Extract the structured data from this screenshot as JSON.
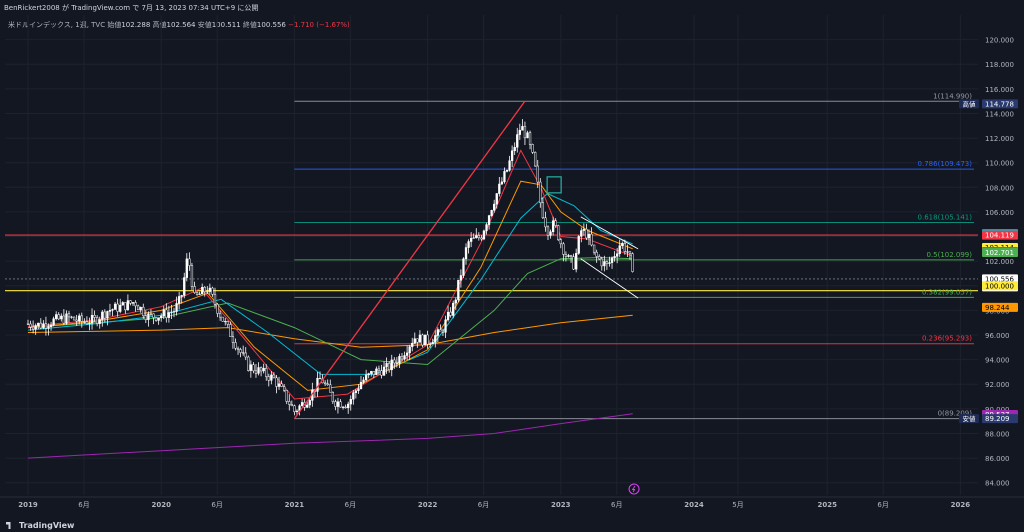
{
  "header": {
    "publish_line": "BenRickert2008 が TradingView.com で 7月 13, 2023 07:34 UTC+9 に公開",
    "symbol": "米ドルインデックス, 1週, TVC",
    "open_label": "始値",
    "open": "102.288",
    "high_label": "高値",
    "high": "102.564",
    "low_label": "安値",
    "low": "100.511",
    "close_label": "終値",
    "close": "100.556",
    "change": "−1.710 (−1.67%)"
  },
  "brand": {
    "name": "TradingView",
    "icon": "tradingview-logo-icon"
  },
  "colors": {
    "background": "#131722",
    "up": "#ffffff",
    "down": "#ffffff",
    "red_line": "#f23645",
    "yellow_line": "#ffeb3b",
    "fib_green": "#4caf50",
    "fib_blue": "#2962ff",
    "fib_teal": "#089981",
    "purple_ma": "#9c27b0",
    "orange_ma": "#ff9800"
  },
  "chart_data": {
    "type": "candlestick",
    "y_axis": {
      "min": 83,
      "max": 122,
      "position": "right",
      "ticks": [
        "84.000",
        "86.000",
        "88.000",
        "90.000",
        "92.000",
        "94.000",
        "96.000",
        "98.000",
        "100.000",
        "102.000",
        "104.000",
        "106.000",
        "108.000",
        "110.000",
        "112.000",
        "114.000",
        "116.000",
        "118.000",
        "120.000"
      ]
    },
    "x_axis": {
      "ticks": [
        {
          "label": "2019",
          "t": 0
        },
        {
          "label": "6月",
          "t": 0.42
        },
        {
          "label": "2020",
          "t": 1.0
        },
        {
          "label": "6月",
          "t": 1.42
        },
        {
          "label": "2021",
          "t": 2.0
        },
        {
          "label": "6月",
          "t": 2.42
        },
        {
          "label": "2022",
          "t": 3.0
        },
        {
          "label": "6月",
          "t": 3.42
        },
        {
          "label": "2023",
          "t": 4.0
        },
        {
          "label": "6月",
          "t": 4.42
        },
        {
          "label": "2024",
          "t": 5.0
        },
        {
          "label": "5月",
          "t": 5.33
        },
        {
          "label": "2025",
          "t": 6.0
        },
        {
          "label": "6月",
          "t": 6.42
        },
        {
          "label": "2026",
          "t": 7.0
        }
      ]
    },
    "price_path": [
      [
        0,
        96.9
      ],
      [
        0.1,
        96.8
      ],
      [
        0.2,
        97.2
      ],
      [
        0.3,
        97.4
      ],
      [
        0.4,
        97.1
      ],
      [
        0.5,
        97.2
      ],
      [
        0.6,
        98.0
      ],
      [
        0.7,
        98.3
      ],
      [
        0.8,
        98.7
      ],
      [
        0.9,
        97.5
      ],
      [
        1.0,
        97.6
      ],
      [
        1.1,
        98.0
      ],
      [
        1.15,
        99.0
      ],
      [
        1.2,
        102.5
      ],
      [
        1.25,
        99.0
      ],
      [
        1.35,
        99.8
      ],
      [
        1.45,
        97.5
      ],
      [
        1.55,
        95.5
      ],
      [
        1.65,
        93.5
      ],
      [
        1.75,
        93.0
      ],
      [
        1.85,
        92.4
      ],
      [
        1.95,
        90.7
      ],
      [
        2.0,
        89.8
      ],
      [
        2.1,
        90.8
      ],
      [
        2.2,
        92.5
      ],
      [
        2.3,
        90.6
      ],
      [
        2.4,
        90.4
      ],
      [
        2.5,
        92.2
      ],
      [
        2.6,
        93.0
      ],
      [
        2.7,
        93.3
      ],
      [
        2.8,
        94.3
      ],
      [
        2.9,
        95.8
      ],
      [
        3.0,
        95.5
      ],
      [
        3.1,
        96.2
      ],
      [
        3.2,
        98.5
      ],
      [
        3.3,
        103.5
      ],
      [
        3.4,
        104.0
      ],
      [
        3.5,
        107.0
      ],
      [
        3.6,
        109.5
      ],
      [
        3.7,
        113.0
      ],
      [
        3.75,
        112.0
      ],
      [
        3.8,
        110.0
      ],
      [
        3.85,
        106.5
      ],
      [
        3.9,
        104.5
      ],
      [
        3.95,
        105.0
      ],
      [
        4.0,
        103.5
      ],
      [
        4.05,
        102.2
      ],
      [
        4.1,
        101.7
      ],
      [
        4.15,
        104.5
      ],
      [
        4.2,
        104.2
      ],
      [
        4.25,
        102.5
      ],
      [
        4.3,
        102.0
      ],
      [
        4.35,
        101.6
      ],
      [
        4.4,
        102.5
      ],
      [
        4.45,
        103.5
      ],
      [
        4.5,
        102.8
      ],
      [
        4.52,
        102.2
      ],
      [
        4.54,
        100.6
      ]
    ],
    "series": [
      {
        "name": "",
        "color": "#9c27b0",
        "points": [
          [
            0,
            86.0
          ],
          [
            1,
            86.6
          ],
          [
            2,
            87.2
          ],
          [
            3,
            87.6
          ],
          [
            3.5,
            88.0
          ],
          [
            4,
            88.8
          ],
          [
            4.54,
            89.6
          ]
        ]
      },
      {
        "name": "",
        "color": "#ff9800",
        "points": [
          [
            0,
            96.2
          ],
          [
            1,
            96.4
          ],
          [
            1.5,
            96.6
          ],
          [
            2,
            95.7
          ],
          [
            2.5,
            95.0
          ],
          [
            3,
            95.2
          ],
          [
            3.5,
            96.2
          ],
          [
            4,
            97.0
          ],
          [
            4.54,
            97.6
          ]
        ]
      },
      {
        "name": "",
        "color": "#4caf50",
        "points": [
          [
            0,
            96.6
          ],
          [
            0.5,
            97.0
          ],
          [
            1,
            97.4
          ],
          [
            1.5,
            98.6
          ],
          [
            2,
            96.6
          ],
          [
            2.5,
            94.0
          ],
          [
            3,
            93.6
          ],
          [
            3.5,
            98.0
          ],
          [
            3.75,
            101.0
          ],
          [
            4,
            102.2
          ],
          [
            4.3,
            102.3
          ],
          [
            4.54,
            102.2
          ]
        ]
      },
      {
        "name": "",
        "color": "#00bcd4",
        "points": [
          [
            0,
            96.4
          ],
          [
            0.5,
            96.9
          ],
          [
            1,
            97.6
          ],
          [
            1.45,
            98.9
          ],
          [
            1.8,
            96.2
          ],
          [
            2.2,
            92.8
          ],
          [
            2.6,
            92.8
          ],
          [
            3,
            94.6
          ],
          [
            3.4,
            100.5
          ],
          [
            3.7,
            105.5
          ],
          [
            3.9,
            107.5
          ],
          [
            4.1,
            106.5
          ],
          [
            4.3,
            104.5
          ],
          [
            4.54,
            103.4
          ]
        ]
      },
      {
        "name": "",
        "color": "#ff9800",
        "points": [
          [
            0,
            96.6
          ],
          [
            0.5,
            97.1
          ],
          [
            1,
            98.0
          ],
          [
            1.35,
            99.4
          ],
          [
            1.7,
            95.0
          ],
          [
            2.1,
            91.5
          ],
          [
            2.5,
            92.0
          ],
          [
            3,
            94.8
          ],
          [
            3.4,
            101.5
          ],
          [
            3.7,
            108.5
          ],
          [
            3.85,
            108.2
          ],
          [
            4.0,
            106.0
          ],
          [
            4.2,
            104.5
          ],
          [
            4.54,
            103.0
          ]
        ]
      },
      {
        "name": "",
        "color": "#f23645",
        "points": [
          [
            0,
            96.7
          ],
          [
            0.5,
            97.2
          ],
          [
            1,
            98.3
          ],
          [
            1.3,
            99.8
          ],
          [
            1.6,
            96.0
          ],
          [
            2.0,
            90.8
          ],
          [
            2.4,
            91.2
          ],
          [
            3,
            95.2
          ],
          [
            3.4,
            103.5
          ],
          [
            3.7,
            111.0
          ],
          [
            3.85,
            108.0
          ],
          [
            4.0,
            104.0
          ],
          [
            4.2,
            103.8
          ],
          [
            4.54,
            102.4
          ]
        ]
      }
    ],
    "horizontal_levels": [
      {
        "value": 104.119,
        "color": "#f23645",
        "label": "104.119",
        "full": true
      },
      {
        "value": 99.6,
        "color": "#ffeb3b",
        "label": "",
        "full": true
      },
      {
        "value": 100.556,
        "color": "#787b86",
        "label": "",
        "full": true,
        "dashed": true
      }
    ],
    "fib_levels": [
      {
        "ratio": "1",
        "value": 114.99,
        "text": "1(114.990)",
        "color": "#9598a1"
      },
      {
        "ratio": "0.786",
        "value": 109.473,
        "text": "0.786(109.473)",
        "color": "#2962ff"
      },
      {
        "ratio": "0.618",
        "value": 105.141,
        "text": "0.618(105.141)",
        "color": "#089981"
      },
      {
        "ratio": "0.5",
        "value": 102.099,
        "text": "0.5(102.099)",
        "color": "#4caf50"
      },
      {
        "ratio": "0.382",
        "value": 99.057,
        "text": "0.382(99.057)",
        "color": "#4caf50"
      },
      {
        "ratio": "0.236",
        "value": 95.293,
        "text": "0.236(95.293)",
        "color": "#f23645"
      },
      {
        "ratio": "0",
        "value": 89.209,
        "text": "0(89.209)",
        "color": "#9598a1"
      }
    ],
    "fib_range": {
      "t_start": 2.0,
      "t_end": 7.05
    },
    "trendline": {
      "from": [
        2.0,
        89.209
      ],
      "to": [
        3.73,
        114.99
      ],
      "color": "#f23645"
    },
    "wedge_lines": [
      {
        "from": [
          4.15,
          105.6
        ],
        "to": [
          4.58,
          103.0
        ],
        "color": "#ffffff"
      },
      {
        "from": [
          4.15,
          102.2
        ],
        "to": [
          4.58,
          99.0
        ],
        "color": "#ffffff"
      }
    ],
    "marker_box": {
      "t": 3.95,
      "value": 108.2,
      "color": "#26a69a"
    },
    "axis_badges": [
      {
        "value": 114.778,
        "text": "114.778",
        "tag": "高値",
        "bg": "#2a3a6e",
        "fg": "#ffffff",
        "tagbg": "#1e2b55"
      },
      {
        "value": 104.24,
        "text": "104.240",
        "tag": "",
        "bg": "#00bcd4",
        "fg": "#000000"
      },
      {
        "value": 104.119,
        "text": "104.119",
        "tag": "",
        "bg": "#f23645",
        "fg": "#ffffff"
      },
      {
        "value": 103.114,
        "text": "103.114",
        "tag": "",
        "bg": "#ffeb3b",
        "fg": "#000000"
      },
      {
        "value": 102.786,
        "text": "102.786",
        "tag": "",
        "bg": "#f23645",
        "fg": "#ffffff"
      },
      {
        "value": 102.701,
        "text": "102.701",
        "tag": "",
        "bg": "#4caf50",
        "fg": "#ffffff"
      },
      {
        "value": 100.556,
        "text": "100.556",
        "tag": "",
        "bg": "#ffffff",
        "fg": "#000000",
        "sub": "2d 1h"
      },
      {
        "value": 100.0,
        "text": "100.000",
        "tag": "",
        "bg": "#ffeb3b",
        "fg": "#000000"
      },
      {
        "value": 98.244,
        "text": "98.244",
        "tag": "",
        "bg": "#ff9800",
        "fg": "#000000"
      },
      {
        "value": 89.537,
        "text": "89.537",
        "tag": "",
        "bg": "#9c27b0",
        "fg": "#ffffff"
      },
      {
        "value": 89.209,
        "text": "89.209",
        "tag": "安値",
        "bg": "#2a3a6e",
        "fg": "#ffffff",
        "tagbg": "#1e2b55"
      }
    ],
    "event_icon": {
      "t": 4.55,
      "name": "lightning-icon"
    }
  }
}
